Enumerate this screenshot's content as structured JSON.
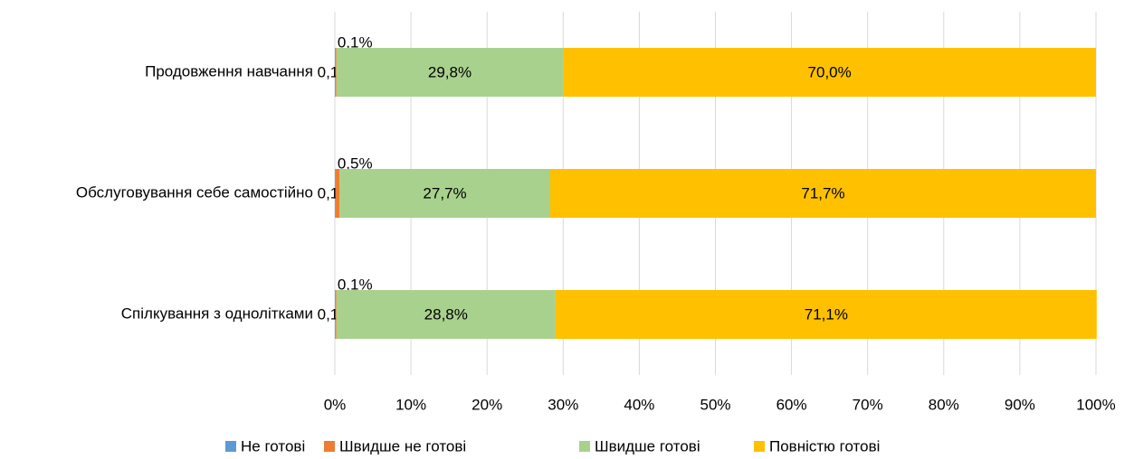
{
  "chart_data": {
    "type": "stacked_barh",
    "categories": [
      "Продовження навчання",
      "Обслуговування себе самостійно",
      "Спілкування з однолітками"
    ],
    "series": [
      {
        "name": "Не готові",
        "color": "#5b9bd5",
        "values": [
          0.1,
          0.1,
          0.1
        ],
        "value_labels": [
          "0,1%",
          "0,1%",
          "0,1%"
        ]
      },
      {
        "name": "Швидше не готові",
        "color": "#ed7d31",
        "values": [
          0.1,
          0.5,
          0.1
        ],
        "value_labels": [
          "0,1%",
          "0,5%",
          "0,1%"
        ]
      },
      {
        "name": "Швидше готові",
        "color": "#a9d18e",
        "values": [
          29.8,
          27.7,
          28.8
        ],
        "value_labels": [
          "29,8%",
          "27,7%",
          "28,8%"
        ]
      },
      {
        "name": "Повністю готові",
        "color": "#ffc000",
        "values": [
          70.0,
          71.7,
          71.1
        ],
        "value_labels": [
          "70,0%",
          "71,7%",
          "71,1%"
        ]
      }
    ],
    "xlim": [
      0,
      100
    ],
    "xticks": [
      {
        "value": 0,
        "label": "0%"
      },
      {
        "value": 10,
        "label": "10%"
      },
      {
        "value": 20,
        "label": "20%"
      },
      {
        "value": 30,
        "label": "30%"
      },
      {
        "value": 40,
        "label": "40%"
      },
      {
        "value": 50,
        "label": "50%"
      },
      {
        "value": 60,
        "label": "60%"
      },
      {
        "value": 70,
        "label": "70%"
      },
      {
        "value": 80,
        "label": "80%"
      },
      {
        "value": 90,
        "label": "90%"
      },
      {
        "value": 100,
        "label": "100%"
      }
    ],
    "grid": true,
    "legend": "bottom"
  }
}
